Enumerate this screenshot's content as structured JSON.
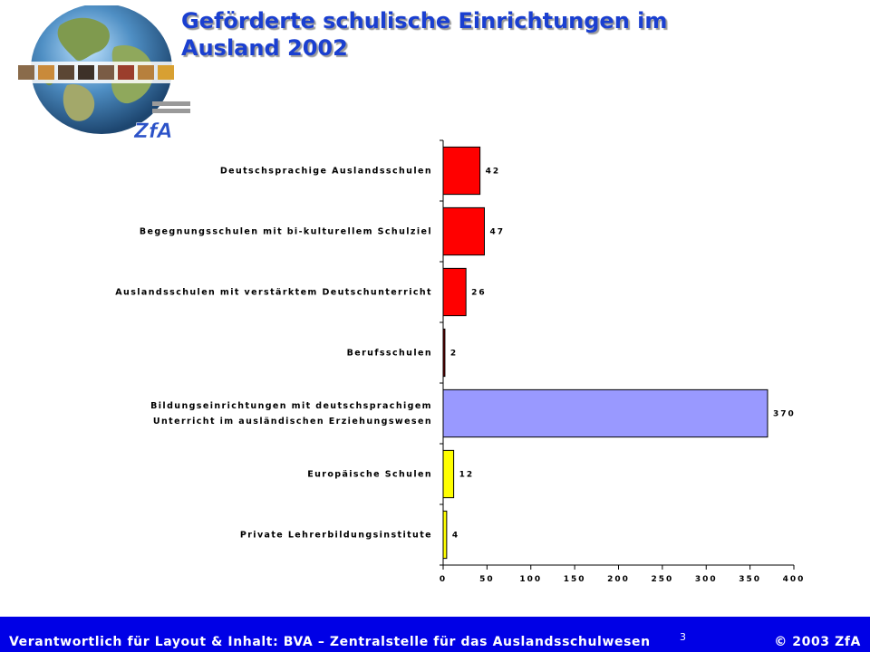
{
  "slide": {
    "title_line1": "Geförderte schulische Einrichtungen im",
    "title_line2": "Ausland 2002",
    "logo_text": "ZfA"
  },
  "footer": {
    "left": "Verantwortlich für Layout & Inhalt: BVA – Zentralstelle für das Auslandsschulwesen",
    "page": "3",
    "right": "© 2003 ZfA"
  },
  "colors": {
    "title": "#1a3fd0",
    "footer_bg": "#0000e6"
  },
  "chart_data": {
    "type": "bar",
    "orientation": "horizontal",
    "categories": [
      [
        "Deutschsprachige Auslandsschulen"
      ],
      [
        "Begegnungsschulen mit bi-kulturellem Schulziel"
      ],
      [
        "Auslandsschulen mit verstärktem Deutschunterricht"
      ],
      [
        "Berufsschulen"
      ],
      [
        "Bildungseinrichtungen mit deutschsprachigem",
        "Unterricht im ausländischen Erziehungswesen"
      ],
      [
        "Europäische Schulen"
      ],
      [
        "Private Lehrerbildungsinstitute"
      ]
    ],
    "values": [
      42,
      47,
      26,
      2,
      370,
      12,
      4
    ],
    "bar_colors": [
      "#ff0000",
      "#ff0000",
      "#ff0000",
      "#800000",
      "#9999ff",
      "#ffff00",
      "#ffff00"
    ],
    "xlim": [
      0,
      400
    ],
    "xticks": [
      0,
      50,
      100,
      150,
      200,
      250,
      300,
      350,
      400
    ],
    "grid": false,
    "legend": "none"
  }
}
